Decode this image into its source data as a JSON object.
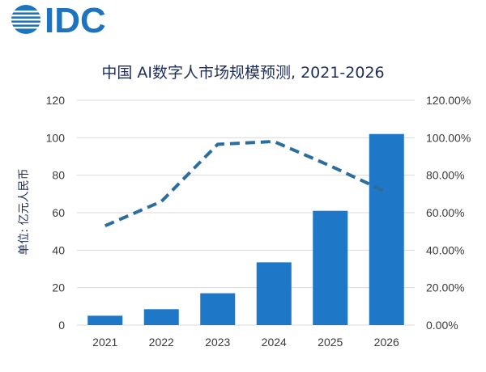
{
  "logo": {
    "text": "IDC",
    "color": "#1e73be"
  },
  "chart_data": {
    "type": "bar",
    "title": "中国 AI数字人市场规模预测, 2021-2026",
    "ylabel": "单位: 亿元人民币",
    "xlabel": "",
    "categories": [
      "2021",
      "2022",
      "2023",
      "2024",
      "2025",
      "2026"
    ],
    "series": [
      {
        "type": "bar",
        "axis": "left",
        "values": [
          5,
          8.5,
          17,
          33.5,
          61,
          102
        ],
        "color": "#1f77c8"
      },
      {
        "type": "line",
        "axis": "right",
        "style": "dashed",
        "values": [
          0.53,
          0.66,
          0.965,
          0.98,
          0.85,
          0.71
        ],
        "color": "#2a6d9e"
      }
    ],
    "ylim": [
      0,
      120
    ],
    "yticks": [
      "0",
      "20",
      "40",
      "60",
      "80",
      "100",
      "120"
    ],
    "y2lim": [
      0,
      1.2
    ],
    "y2ticks": [
      "0.00%",
      "20.00%",
      "40.00%",
      "60.00%",
      "80.00%",
      "100.00%",
      "120.00%"
    ],
    "grid": true
  }
}
